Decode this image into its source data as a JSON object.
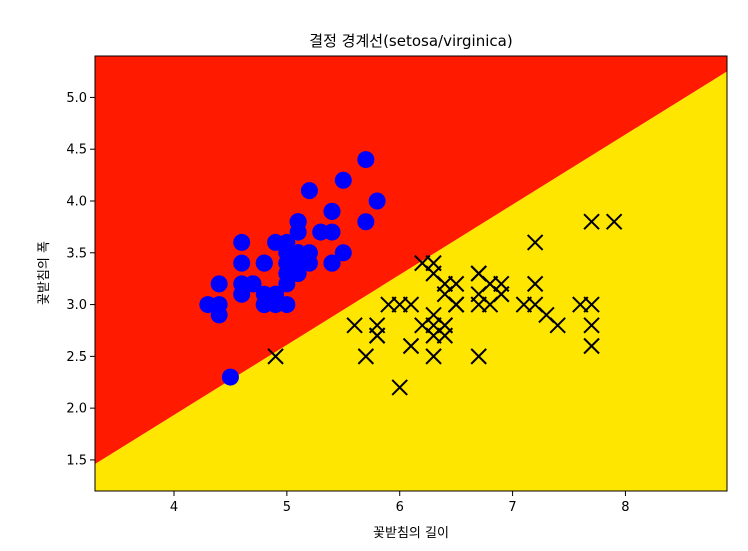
{
  "chart_data": {
    "type": "scatter",
    "title": "결정 경계선(setosa/virginica)",
    "xlabel": "꽃받침의 길이",
    "ylabel": "꽃받침의 폭",
    "xlim": [
      3.3,
      8.9
    ],
    "ylim": [
      1.2,
      5.4
    ],
    "xticks": [
      4,
      5,
      6,
      7,
      8
    ],
    "yticks": [
      1.5,
      2.0,
      2.5,
      3.0,
      3.5,
      4.0,
      4.5,
      5.0
    ],
    "grid": false,
    "decision_boundary": {
      "line": [
        [
          3.3,
          1.46
        ],
        [
          8.9,
          5.25
        ]
      ],
      "upper_region_color": "#ff1a00",
      "lower_region_color": "#ffe600"
    },
    "series": [
      {
        "marker": "circle",
        "color": "#0000ff",
        "points": [
          [
            5.1,
            3.5
          ],
          [
            4.9,
            3.0
          ],
          [
            4.7,
            3.2
          ],
          [
            4.6,
            3.1
          ],
          [
            5.0,
            3.6
          ],
          [
            5.4,
            3.9
          ],
          [
            4.6,
            3.4
          ],
          [
            5.0,
            3.4
          ],
          [
            4.4,
            2.9
          ],
          [
            4.9,
            3.1
          ],
          [
            5.4,
            3.7
          ],
          [
            4.8,
            3.4
          ],
          [
            4.8,
            3.0
          ],
          [
            4.3,
            3.0
          ],
          [
            5.8,
            4.0
          ],
          [
            5.7,
            4.4
          ],
          [
            5.4,
            3.9
          ],
          [
            5.1,
            3.5
          ],
          [
            5.7,
            3.8
          ],
          [
            5.1,
            3.8
          ],
          [
            5.4,
            3.4
          ],
          [
            5.1,
            3.7
          ],
          [
            4.6,
            3.6
          ],
          [
            5.1,
            3.3
          ],
          [
            4.8,
            3.4
          ],
          [
            5.0,
            3.0
          ],
          [
            5.0,
            3.4
          ],
          [
            5.2,
            3.5
          ],
          [
            5.2,
            3.4
          ],
          [
            4.7,
            3.2
          ],
          [
            4.8,
            3.1
          ],
          [
            5.4,
            3.4
          ],
          [
            5.2,
            4.1
          ],
          [
            5.5,
            4.2
          ],
          [
            4.9,
            3.1
          ],
          [
            5.0,
            3.2
          ],
          [
            5.5,
            3.5
          ],
          [
            4.9,
            3.6
          ],
          [
            4.4,
            3.0
          ],
          [
            5.1,
            3.4
          ],
          [
            5.0,
            3.5
          ],
          [
            4.5,
            2.3
          ],
          [
            4.4,
            3.2
          ],
          [
            5.0,
            3.5
          ],
          [
            5.1,
            3.8
          ],
          [
            4.8,
            3.0
          ],
          [
            5.1,
            3.8
          ],
          [
            4.6,
            3.2
          ],
          [
            5.3,
            3.7
          ],
          [
            5.0,
            3.3
          ]
        ]
      },
      {
        "marker": "x",
        "color": "#000000",
        "points": [
          [
            6.3,
            3.3
          ],
          [
            5.8,
            2.7
          ],
          [
            7.1,
            3.0
          ],
          [
            6.3,
            2.9
          ],
          [
            6.5,
            3.0
          ],
          [
            7.6,
            3.0
          ],
          [
            4.9,
            2.5
          ],
          [
            7.3,
            2.9
          ],
          [
            6.7,
            2.5
          ],
          [
            7.2,
            3.6
          ],
          [
            6.5,
            3.2
          ],
          [
            6.4,
            2.7
          ],
          [
            6.8,
            3.0
          ],
          [
            5.7,
            2.5
          ],
          [
            5.8,
            2.8
          ],
          [
            6.4,
            3.2
          ],
          [
            6.5,
            3.0
          ],
          [
            7.7,
            3.8
          ],
          [
            7.7,
            2.6
          ],
          [
            6.0,
            2.2
          ],
          [
            6.9,
            3.2
          ],
          [
            5.6,
            2.8
          ],
          [
            7.7,
            2.8
          ],
          [
            6.3,
            2.7
          ],
          [
            6.7,
            3.3
          ],
          [
            7.2,
            3.2
          ],
          [
            6.2,
            2.8
          ],
          [
            6.1,
            3.0
          ],
          [
            6.4,
            2.8
          ],
          [
            7.2,
            3.0
          ],
          [
            7.4,
            2.8
          ],
          [
            7.9,
            3.8
          ],
          [
            6.4,
            2.8
          ],
          [
            6.3,
            2.8
          ],
          [
            6.1,
            2.6
          ],
          [
            7.7,
            3.0
          ],
          [
            6.3,
            3.4
          ],
          [
            6.4,
            3.1
          ],
          [
            6.0,
            3.0
          ],
          [
            6.9,
            3.1
          ],
          [
            6.7,
            3.1
          ],
          [
            6.9,
            3.1
          ],
          [
            5.8,
            2.7
          ],
          [
            6.8,
            3.2
          ],
          [
            6.7,
            3.3
          ],
          [
            6.7,
            3.0
          ],
          [
            6.3,
            2.5
          ],
          [
            6.5,
            3.0
          ],
          [
            6.2,
            3.4
          ],
          [
            5.9,
            3.0
          ]
        ]
      }
    ]
  }
}
